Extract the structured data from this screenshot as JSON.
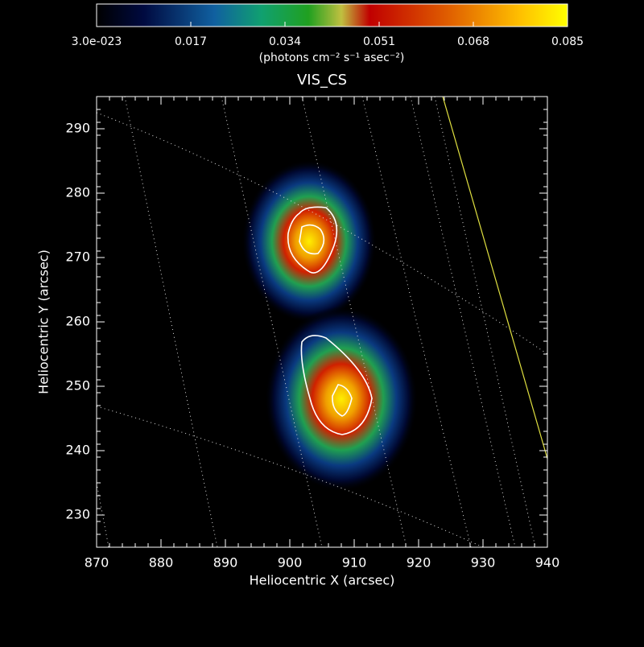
{
  "chart_data": {
    "type": "image",
    "title": "VIS_CS",
    "xlabel": "Heliocentric X (arcsec)",
    "ylabel": "Heliocentric Y (arcsec)",
    "xlim": [
      870,
      940
    ],
    "xticks": [
      870,
      880,
      890,
      900,
      910,
      920,
      930,
      940
    ],
    "ylim": [
      225,
      295
    ],
    "yticks": [
      230,
      240,
      250,
      260,
      270,
      280,
      290
    ],
    "colorbar": {
      "label": "(photons cm⁻² s⁻¹ asec⁻²)",
      "lim": [
        3e-23,
        0.085
      ],
      "ticks": [
        {
          "value": 3e-23,
          "label": "3.0e-023"
        },
        {
          "value": 0.017,
          "label": "0.017"
        },
        {
          "value": 0.034,
          "label": "0.034"
        },
        {
          "value": 0.051,
          "label": "0.051"
        },
        {
          "value": 0.068,
          "label": "0.068"
        },
        0.085
      ]
    },
    "sources": {
      "x": [
        903,
        908
      ],
      "y": [
        272.5,
        248
      ],
      "values": [
        0.075,
        0.085
      ]
    }
  }
}
